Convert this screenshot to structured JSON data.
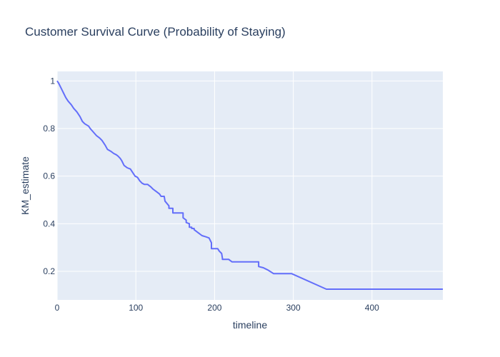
{
  "chart_data": {
    "type": "line",
    "title": "Customer Survival Curve (Probability of Staying)",
    "xlabel": "timeline",
    "ylabel": "KM_estimate",
    "xlim": [
      0,
      490
    ],
    "ylim": [
      0.08,
      1.04
    ],
    "x_ticks": [
      "0",
      "100",
      "200",
      "300",
      "400"
    ],
    "y_ticks": [
      "0.2",
      "0.4",
      "0.6",
      "0.8",
      "1"
    ],
    "x_tick_values": [
      0,
      100,
      200,
      300,
      400
    ],
    "y_tick_values": [
      0.2,
      0.4,
      0.6,
      0.8,
      1
    ],
    "grid": true,
    "background_color": "#e5ecf6",
    "grid_color": "#ffffff",
    "text_color": "#2a3f5f",
    "series": [
      {
        "color": "#636efa",
        "x": [
          0,
          2,
          5,
          8,
          11,
          14,
          18,
          21,
          25,
          29,
          32,
          35,
          40,
          42,
          46,
          50,
          54,
          57,
          61,
          64,
          68,
          72,
          75,
          77,
          80,
          82,
          85,
          89,
          93,
          96,
          99,
          102,
          105,
          108,
          111,
          115,
          119,
          122,
          124,
          126,
          130,
          132,
          136,
          137,
          137,
          142,
          142,
          147,
          147,
          150,
          160,
          160,
          164,
          164,
          168,
          168,
          171,
          171,
          174,
          174,
          180,
          184,
          189,
          193,
          196,
          196,
          204,
          206,
          209,
          210,
          210,
          218,
          222,
          222,
          256,
          256,
          262,
          268,
          275,
          280,
          298,
          342,
          490
        ],
        "y": [
          1.0,
          0.99,
          0.97,
          0.95,
          0.93,
          0.915,
          0.9,
          0.885,
          0.87,
          0.85,
          0.83,
          0.82,
          0.81,
          0.8,
          0.785,
          0.77,
          0.76,
          0.75,
          0.73,
          0.712,
          0.705,
          0.695,
          0.69,
          0.685,
          0.675,
          0.665,
          0.645,
          0.635,
          0.63,
          0.615,
          0.6,
          0.595,
          0.58,
          0.57,
          0.565,
          0.565,
          0.555,
          0.545,
          0.54,
          0.535,
          0.525,
          0.515,
          0.515,
          0.495,
          0.495,
          0.475,
          0.465,
          0.465,
          0.445,
          0.445,
          0.445,
          0.425,
          0.415,
          0.405,
          0.4,
          0.385,
          0.385,
          0.38,
          0.38,
          0.375,
          0.36,
          0.35,
          0.345,
          0.34,
          0.32,
          0.295,
          0.295,
          0.285,
          0.275,
          0.255,
          0.25,
          0.25,
          0.24,
          0.24,
          0.24,
          0.22,
          0.215,
          0.205,
          0.19,
          0.19,
          0.19,
          0.125,
          0.125
        ]
      }
    ]
  }
}
